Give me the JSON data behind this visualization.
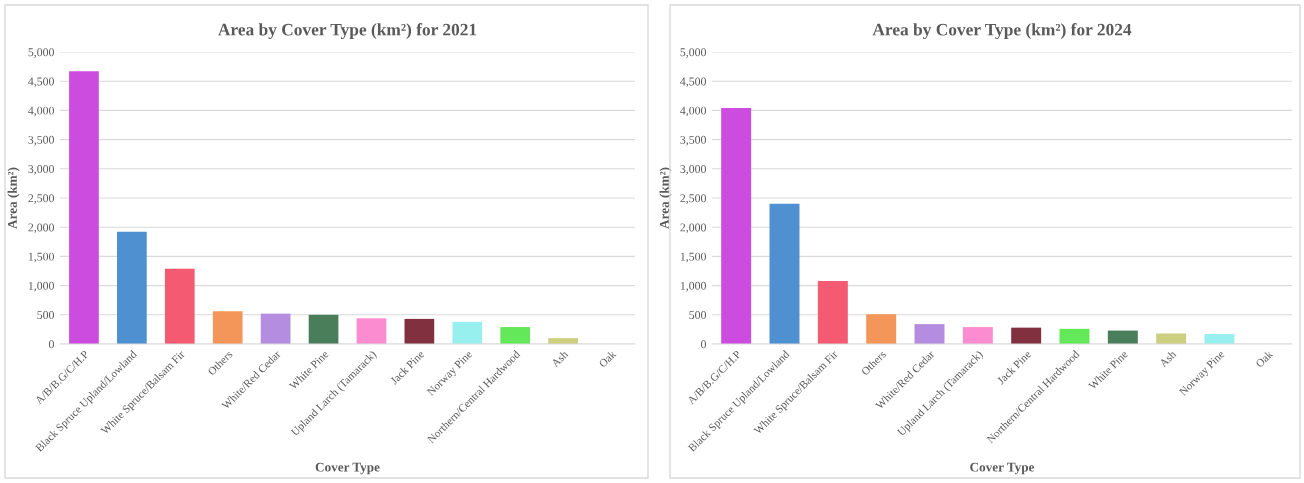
{
  "chart_data": [
    {
      "type": "bar",
      "title": "Area by Cover Type (km²) for 2021",
      "xlabel": "Cover Type",
      "ylabel": "Area (km²)",
      "categories": [
        "A/B/B.G/C/H.P",
        "Black Spruce Upland/Lowland",
        "White Spruce/Balsam Fir",
        "Others",
        "White/Red Cedar",
        "White Pine",
        "Upland Larch (Tamarack)",
        "Jack Pine",
        "Norway Pine",
        "Northern/Central Hardwood",
        "Ash",
        "Oak"
      ],
      "values": [
        4670,
        1920,
        1290,
        560,
        520,
        500,
        440,
        430,
        380,
        290,
        100,
        0
      ],
      "colors": [
        "#cc4ce0",
        "#4f90d0",
        "#f45a72",
        "#f4965a",
        "#b48ce0",
        "#4a7e5a",
        "#fc8cd0",
        "#80303e",
        "#98f0ee",
        "#62e858",
        "#cccf80",
        null
      ],
      "ylim": [
        0,
        5000
      ],
      "yticks": [
        0,
        {
          "value": 500,
          "label": "500"
        },
        {
          "value": 1000,
          "label": "1,000"
        },
        {
          "value": 1500,
          "label": "1,500"
        },
        {
          "value": 2000,
          "label": "2,000"
        },
        {
          "value": 2500,
          "label": "2,500"
        },
        {
          "value": 3000,
          "label": "3,000"
        },
        {
          "value": 3500,
          "label": "3,500"
        },
        {
          "value": 4000,
          "label": "4,000"
        },
        {
          "value": 4500,
          "label": "4,500"
        },
        {
          "value": 5000,
          "label": "5,000"
        }
      ],
      "grid": "y"
    },
    {
      "type": "bar",
      "title": "Area by Cover Type (km²) for 2024",
      "xlabel": "Cover Type",
      "ylabel": "Area (km²)",
      "categories": [
        "A/B/B.G/C/H.P",
        "Black Spruce Upland/Lowland",
        "White Spruce/Balsam Fir",
        "Others",
        "White/Red Cedar",
        "Upland Larch (Tamarack)",
        "Jack Pine",
        "Northern/Central Hardwood",
        "White Pine",
        "Ash",
        "Norway Pine",
        "Oak"
      ],
      "values": [
        4040,
        2400,
        1080,
        510,
        340,
        290,
        280,
        260,
        230,
        180,
        170,
        0
      ],
      "colors": [
        "#cc4ce0",
        "#4f90d0",
        "#f45a72",
        "#f4965a",
        "#b48ce0",
        "#fc8cd0",
        "#80303e",
        "#62e858",
        "#4a7e5a",
        "#cccf80",
        "#98f0ee",
        null
      ],
      "ylim": [
        0,
        5000
      ],
      "yticks": [
        0,
        {
          "value": 500,
          "label": "500"
        },
        {
          "value": 1000,
          "label": "1,000"
        },
        {
          "value": 1500,
          "label": "1,500"
        },
        {
          "value": 2000,
          "label": "2,000"
        },
        {
          "value": 2500,
          "label": "2,500"
        },
        {
          "value": 3000,
          "label": "3,000"
        },
        {
          "value": 3500,
          "label": "3,500"
        },
        {
          "value": 4000,
          "label": "4,000"
        },
        {
          "value": 4500,
          "label": "4,500"
        },
        {
          "value": 5000,
          "label": "5,000"
        }
      ],
      "grid": "y"
    }
  ]
}
